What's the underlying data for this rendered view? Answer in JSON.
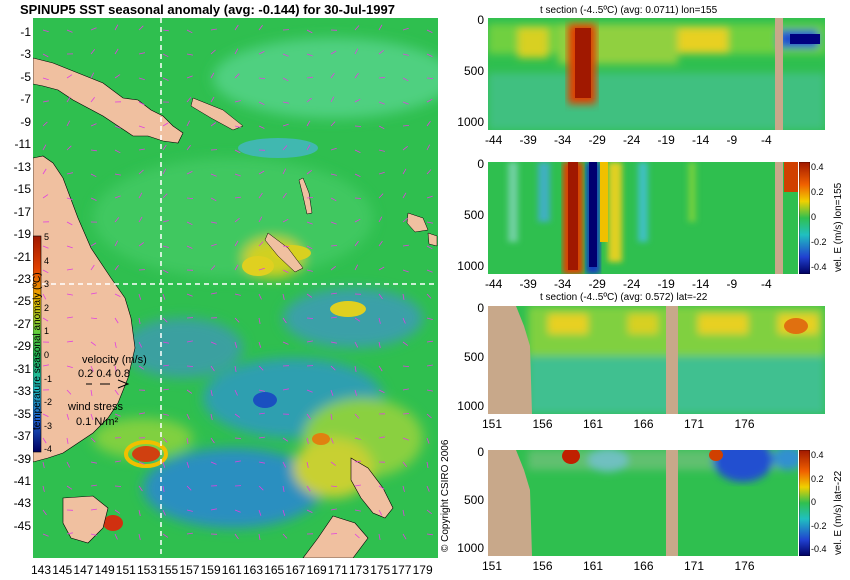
{
  "title": "SPINUP5 SST seasonal anomaly (avg: -0.144) for 30-Jul-1997",
  "copyright": "© Copyright CSIRO 2006",
  "colors": {
    "land": "#d9b48f",
    "section_land": "#c8a88a",
    "ocean_mid": "#2fbf4f",
    "warm": "#e8c000",
    "hot": "#c02800",
    "cool": "#2a8cd0",
    "cold": "#101070",
    "crosshair": "#ffffff",
    "vector": "#e040e0"
  },
  "map": {
    "lat_ticks": [
      "-1",
      "-3",
      "-5",
      "-7",
      "-9",
      "-11",
      "-13",
      "-15",
      "-17",
      "-19",
      "-21",
      "-23",
      "-25",
      "-27",
      "-29",
      "-31",
      "-33",
      "-35",
      "-37",
      "-39",
      "-41",
      "-43",
      "-45"
    ],
    "lon_ticks": [
      "143",
      "145",
      "147",
      "149",
      "151",
      "153",
      "155",
      "157",
      "159",
      "161",
      "163",
      "165",
      "167",
      "169",
      "171",
      "173",
      "175",
      "177",
      "179"
    ],
    "colorbar_label": "temperature seasonal anomaly (ºC)",
    "colorbar_ticks": [
      "5",
      "4",
      "3",
      "2",
      "1",
      "0",
      "-1",
      "-2",
      "-3",
      "-4"
    ],
    "velocity_label": "velocity (m/s)",
    "velocity_scale": "0.2 0.4 0.8",
    "wind_label": "wind stress",
    "wind_scale": "0.1 N/m²"
  },
  "panels": [
    {
      "title": "t section (-4..5ºC) (avg: 0.0711) lon=155",
      "x_ticks": [
        "-44",
        "-39",
        "-34",
        "-29",
        "-24",
        "-19",
        "-14",
        "-9",
        "-4"
      ],
      "y_ticks": [
        "0",
        "500",
        "1000"
      ]
    },
    {
      "title": "",
      "x_ticks": [
        "-44",
        "-39",
        "-34",
        "-29",
        "-24",
        "-19",
        "-14",
        "-9",
        "-4"
      ],
      "y_ticks": [
        "0",
        "500",
        "1000"
      ],
      "cb_label": "vel. E (m/s) lon=155",
      "cb_ticks": [
        "0.4",
        "0.2",
        "0",
        "-0.2",
        "-0.4"
      ]
    },
    {
      "title": "t section (-4..5ºC) (avg: 0.572) lat=-22",
      "x_ticks": [
        "151",
        "156",
        "161",
        "166",
        "171",
        "176"
      ],
      "y_ticks": [
        "0",
        "500",
        "1000"
      ]
    },
    {
      "title": "",
      "x_ticks": [
        "151",
        "156",
        "161",
        "166",
        "171",
        "176"
      ],
      "y_ticks": [
        "0",
        "500",
        "1000"
      ],
      "cb_label": "vel. E (m/s) lat=-22",
      "cb_ticks": [
        "0.4",
        "0.2",
        "0",
        "-0.2",
        "-0.4"
      ]
    }
  ],
  "chart_data": [
    {
      "type": "heatmap",
      "title": "SPINUP5 SST seasonal anomaly (avg: -0.144) for 30-Jul-1997",
      "x_ticks": [
        143,
        145,
        147,
        149,
        151,
        153,
        155,
        157,
        159,
        161,
        163,
        165,
        167,
        169,
        171,
        173,
        175,
        177,
        179
      ],
      "y_ticks": [
        -1,
        -3,
        -5,
        -7,
        -9,
        -11,
        -13,
        -15,
        -17,
        -19,
        -21,
        -23,
        -25,
        -27,
        -29,
        -31,
        -33,
        -35,
        -37,
        -39,
        -41,
        -43,
        -45
      ],
      "xlim": [
        142.5,
        180
      ],
      "ylim": [
        -45,
        0
      ],
      "color_range": [
        -4,
        5
      ],
      "crosshair": {
        "lon": 155,
        "lat": -22
      },
      "anomaly_hotspots": [
        {
          "lon": 153.5,
          "lat": -36.5,
          "value": 3.5
        },
        {
          "lon": 150.5,
          "lat": -42.7,
          "value": 3.0
        },
        {
          "lon": 161.5,
          "lat": -35.2,
          "value": 3.0
        },
        {
          "lon": 167.8,
          "lat": -25.7,
          "value": 2.0
        },
        {
          "lon": 155.5,
          "lat": -21.5,
          "value": 2.0
        },
        {
          "lon": 161.5,
          "lat": -19.5,
          "value": 2.0
        },
        {
          "lon": 159.8,
          "lat": -31.9,
          "value": -3.0
        },
        {
          "lon": 148.5,
          "lat": -4.0,
          "value": -2.0
        }
      ]
    },
    {
      "type": "heatmap",
      "title": "t section (-4..5ºC) (avg: 0.0711) lon=155",
      "x_ticks": [
        -44,
        -39,
        -34,
        -29,
        -24,
        -19,
        -14,
        -9,
        -4
      ],
      "y_ticks": [
        0,
        500,
        1000
      ],
      "xlim": [
        -45,
        0
      ],
      "ylim": [
        1050,
        0
      ],
      "color_range": [
        -4,
        5
      ],
      "features": [
        {
          "lat": -33.5,
          "depth_top": 0,
          "depth_bottom": 850,
          "value": 5
        },
        {
          "lat": -26,
          "depth_top": 0,
          "depth_bottom": 300,
          "value": 2
        },
        {
          "lat": -2,
          "depth_top": 100,
          "depth_bottom": 300,
          "value": -4
        }
      ],
      "land_columns": [
        -5.8
      ]
    },
    {
      "type": "heatmap",
      "title": "",
      "x_ticks": [
        -44,
        -39,
        -34,
        -29,
        -24,
        -19,
        -14,
        -9,
        -4
      ],
      "y_ticks": [
        0,
        500,
        1000
      ],
      "xlim": [
        -45,
        0
      ],
      "ylim": [
        1050,
        0
      ],
      "color_range": [
        -0.4,
        0.4
      ],
      "colorbar_label": "vel. E (m/s) lon=155",
      "features": [
        {
          "lat": -34.5,
          "depth_top": 0,
          "depth_bottom": 1000,
          "value": 0.4
        },
        {
          "lat": -31.5,
          "depth_top": 0,
          "depth_bottom": 1000,
          "value": -0.4
        },
        {
          "lat": -28.5,
          "depth_top": 0,
          "depth_bottom": 700,
          "value": 0.2
        },
        {
          "lat": -2,
          "depth_top": 0,
          "depth_bottom": 300,
          "value": 0.4
        }
      ],
      "land_columns": [
        -5.8
      ]
    },
    {
      "type": "heatmap",
      "title": "t section (-4..5ºC) (avg: 0.572) lat=-22",
      "x_ticks": [
        151,
        156,
        161,
        166,
        171,
        176
      ],
      "y_ticks": [
        0,
        500,
        1000
      ],
      "xlim": [
        149.5,
        180
      ],
      "ylim": [
        1050,
        0
      ],
      "color_range": [
        -4,
        5
      ],
      "land_regions": [
        {
          "lon_from": 149.5,
          "lon_to": 153.5
        },
        {
          "lon_from": 165.8,
          "lon_to": 166.8
        }
      ],
      "features": [
        {
          "lon": 175.5,
          "depth_top": 0,
          "depth_bottom": 250,
          "value": 3
        },
        {
          "lon": 157,
          "depth_top": 0,
          "depth_bottom": 200,
          "value": 2
        }
      ]
    },
    {
      "type": "heatmap",
      "title": "",
      "x_ticks": [
        151,
        156,
        161,
        166,
        171,
        176
      ],
      "y_ticks": [
        0,
        500,
        1000
      ],
      "xlim": [
        149.5,
        180
      ],
      "ylim": [
        1050,
        0
      ],
      "color_range": [
        -0.4,
        0.4
      ],
      "colorbar_label": "vel. E (m/s) lat=-22",
      "land_regions": [
        {
          "lon_from": 149.5,
          "lon_to": 153.5
        },
        {
          "lon_from": 165.8,
          "lon_to": 166.8
        }
      ],
      "features": [
        {
          "lon": 156.8,
          "depth_top": 0,
          "depth_bottom": 150,
          "value": 0.4
        },
        {
          "lon": 170,
          "depth_top": 0,
          "depth_bottom": 100,
          "value": 0.4
        },
        {
          "lon": 172,
          "depth_top": 0,
          "depth_bottom": 300,
          "value": -0.3
        },
        {
          "lon": 178,
          "depth_top": 0,
          "depth_bottom": 150,
          "value": -0.3
        }
      ]
    }
  ]
}
